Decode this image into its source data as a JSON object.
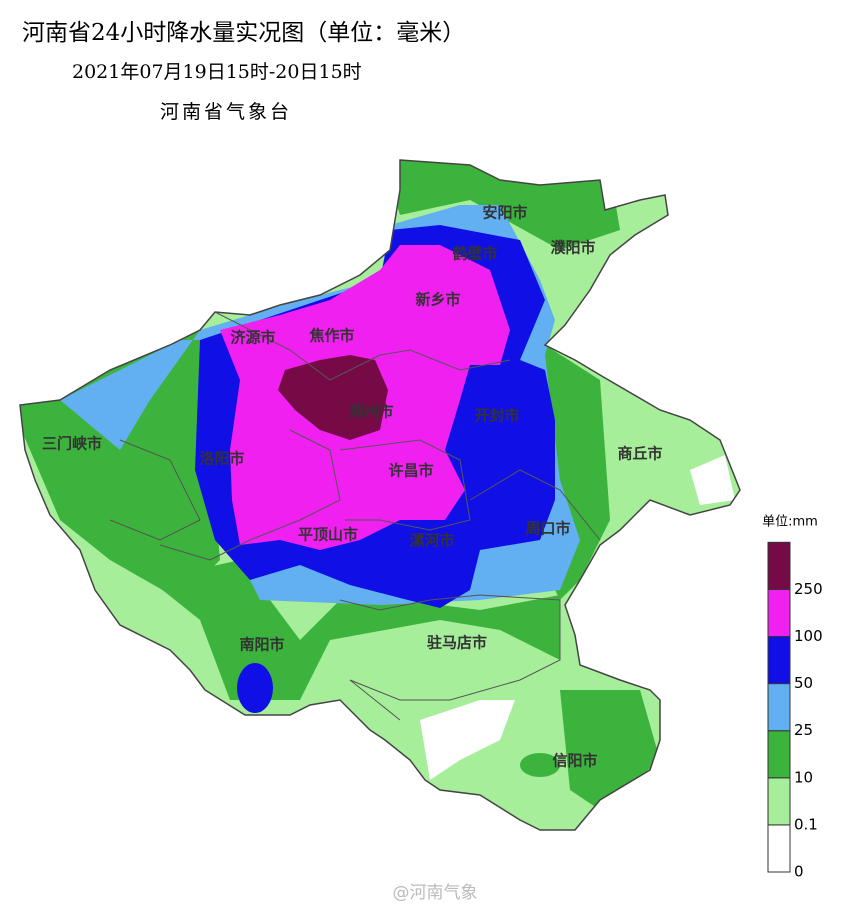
{
  "header": {
    "title": "河南省24小时降水量实况图（单位：毫米）",
    "subtitle": "2021年07月19日15时-20日15时",
    "agency": "河南省气象台"
  },
  "cities": [
    {
      "label": "安阳市"
    },
    {
      "label": "鹤壁市"
    },
    {
      "label": "濮阳市"
    },
    {
      "label": "新乡市"
    },
    {
      "label": "济源市"
    },
    {
      "label": "焦作市"
    },
    {
      "label": "郑州市"
    },
    {
      "label": "开封市"
    },
    {
      "label": "三门峡市"
    },
    {
      "label": "洛阳市"
    },
    {
      "label": "商丘市"
    },
    {
      "label": "许昌市"
    },
    {
      "label": "平顶山市"
    },
    {
      "label": "漯河市"
    },
    {
      "label": "周口市"
    },
    {
      "label": "南阳市"
    },
    {
      "label": "驻马店市"
    },
    {
      "label": "信阳市"
    }
  ],
  "legend": {
    "title": "单位:mm",
    "labels": [
      "0",
      "0.1",
      "10",
      "25",
      "50",
      "100",
      "250"
    ],
    "colors": [
      "#ffffff",
      "#a6ee9a",
      "#3cb33c",
      "#62b0f2",
      "#1010e6",
      "#f020f0",
      "#750a47"
    ]
  },
  "watermark": "@河南气象"
}
